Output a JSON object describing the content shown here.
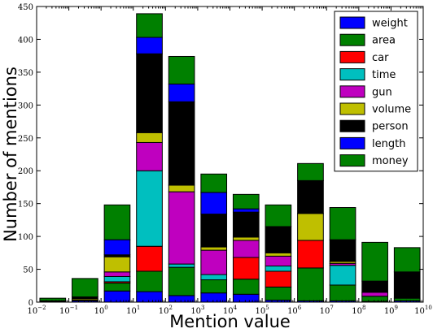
{
  "chart_data": {
    "type": "bar",
    "stacked": true,
    "title": "",
    "xlabel": "Mention value",
    "ylabel": "Number of mentions",
    "x_scale": "log",
    "x_range": [
      0.01,
      10000000000
    ],
    "xticks": [
      {
        "base": "10",
        "exp": "−2"
      },
      {
        "base": "10",
        "exp": "−1"
      },
      {
        "base": "10",
        "exp": "0"
      },
      {
        "base": "10",
        "exp": "1"
      },
      {
        "base": "10",
        "exp": "2"
      },
      {
        "base": "10",
        "exp": "3"
      },
      {
        "base": "10",
        "exp": "4"
      },
      {
        "base": "10",
        "exp": "5"
      },
      {
        "base": "10",
        "exp": "6"
      },
      {
        "base": "10",
        "exp": "7"
      },
      {
        "base": "10",
        "exp": "8"
      },
      {
        "base": "10",
        "exp": "9"
      },
      {
        "base": "10",
        "exp": "10"
      }
    ],
    "ylim": [
      0,
      450
    ],
    "yticks": [
      "0",
      "50",
      "100",
      "150",
      "200",
      "250",
      "300",
      "350",
      "400",
      "450"
    ],
    "grid": false,
    "legend_position": "top-right",
    "bins": [
      {
        "lo": 0.01,
        "hi": 0.1
      },
      {
        "lo": 0.1,
        "hi": 1
      },
      {
        "lo": 1,
        "hi": 10
      },
      {
        "lo": 10,
        "hi": 100
      },
      {
        "lo": 100,
        "hi": 1000
      },
      {
        "lo": 1000,
        "hi": 10000
      },
      {
        "lo": 10000,
        "hi": 100000
      },
      {
        "lo": 100000,
        "hi": 1000000
      },
      {
        "lo": 1000000,
        "hi": 10000000
      },
      {
        "lo": 10000000,
        "hi": 100000000
      },
      {
        "lo": 100000000,
        "hi": 1000000000
      },
      {
        "lo": 1000000000,
        "hi": 10000000000
      }
    ],
    "series": [
      {
        "name": "weight",
        "color": "#0000ff",
        "values": [
          0,
          2,
          17,
          16,
          10,
          14,
          12,
          3,
          2,
          2,
          1,
          2
        ]
      },
      {
        "name": "area",
        "color": "#008000",
        "values": [
          0,
          1,
          12,
          31,
          43,
          20,
          23,
          20,
          50,
          24,
          8,
          4
        ]
      },
      {
        "name": "car",
        "color": "#ff0000",
        "values": [
          0,
          0,
          2,
          38,
          0,
          0,
          33,
          24,
          42,
          0,
          0,
          0
        ]
      },
      {
        "name": "time",
        "color": "#00bfbf",
        "values": [
          0,
          0,
          8,
          115,
          5,
          8,
          0,
          8,
          0,
          30,
          0,
          0
        ]
      },
      {
        "name": "gun",
        "color": "#bf00bf",
        "values": [
          0,
          0,
          7,
          43,
          110,
          37,
          26,
          15,
          0,
          3,
          6,
          0
        ]
      },
      {
        "name": "volume",
        "color": "#bfbf00",
        "values": [
          0,
          2,
          23,
          15,
          10,
          5,
          5,
          5,
          41,
          3,
          0,
          0
        ]
      },
      {
        "name": "person",
        "color": "#000000",
        "values": [
          2,
          3,
          3,
          120,
          127,
          50,
          38,
          40,
          50,
          33,
          17,
          40
        ]
      },
      {
        "name": "length",
        "color": "#0000ff",
        "values": [
          0,
          0,
          23,
          25,
          27,
          33,
          5,
          0,
          0,
          0,
          0,
          0
        ]
      },
      {
        "name": "money",
        "color": "#008000",
        "values": [
          4,
          28,
          53,
          36,
          42,
          28,
          22,
          33,
          26,
          49,
          59,
          37
        ]
      }
    ]
  }
}
